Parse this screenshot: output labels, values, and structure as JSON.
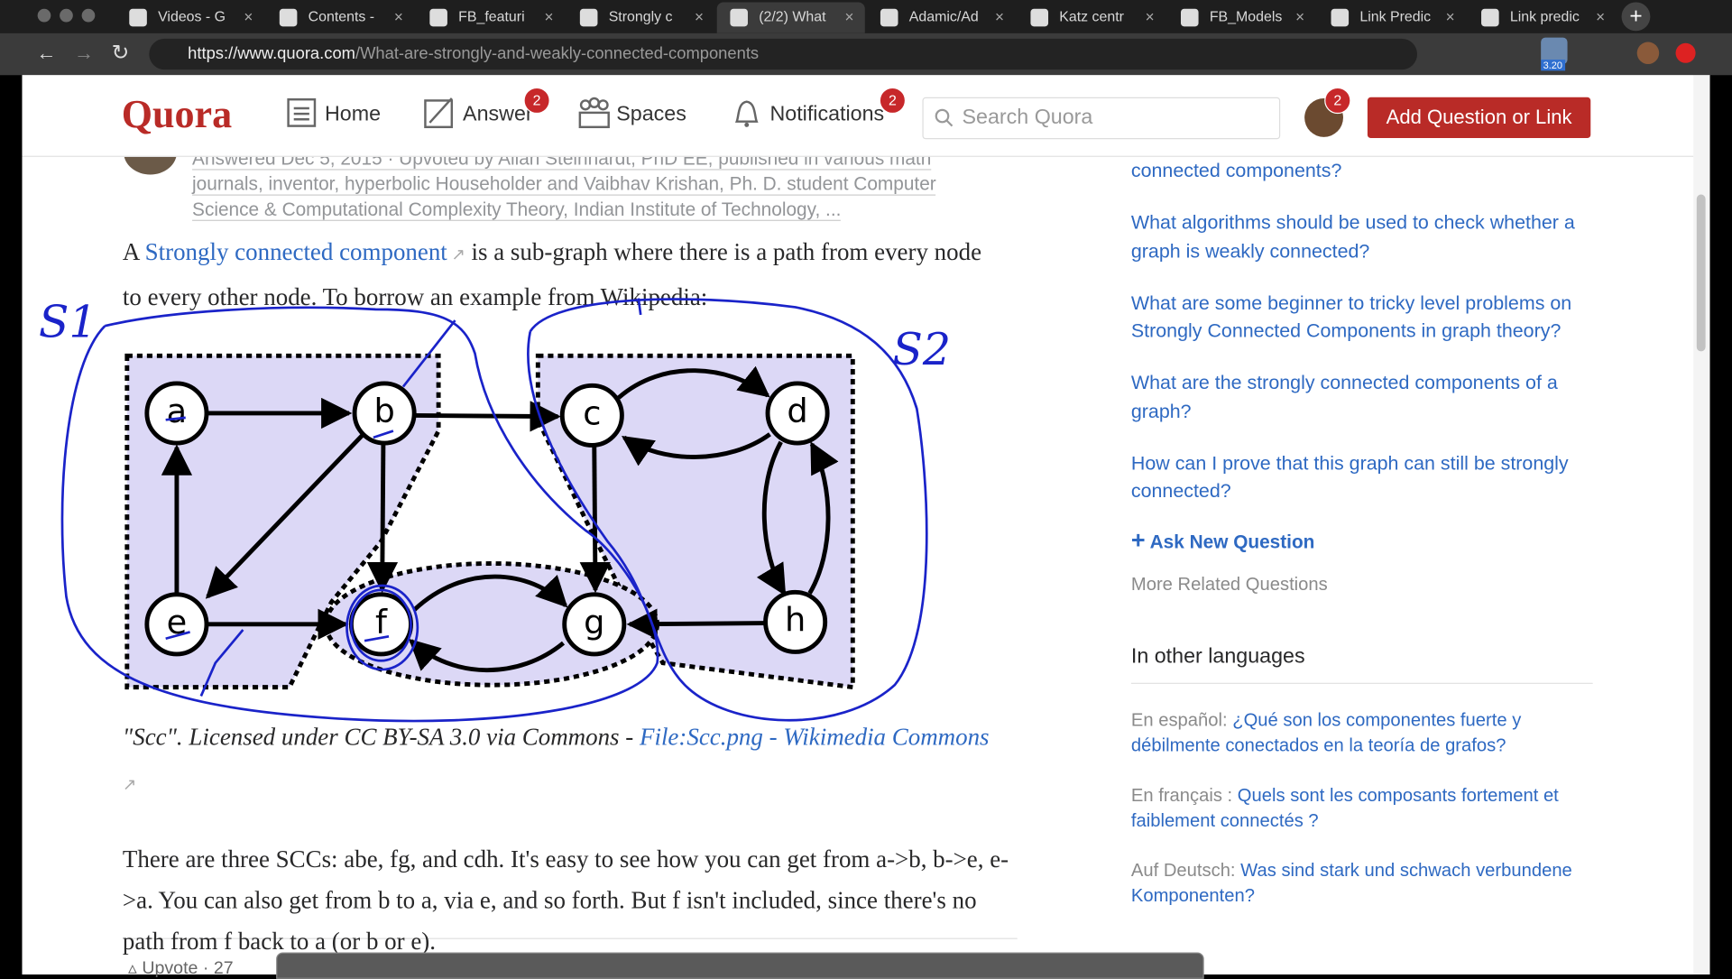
{
  "browser": {
    "tabs": [
      "Videos - G",
      "Contents -",
      "FB_featuri",
      "Strongly c",
      "(2/2) What",
      "Adamic/Ad",
      "Katz centr",
      "FB_Models",
      "Link Predic",
      "Link predic"
    ],
    "url_host": "https://www.quora.com",
    "url_path": "/What-are-strongly-and-weakly-connected-components",
    "extension_badge": "3.20"
  },
  "header": {
    "logo": "Quora",
    "nav": [
      {
        "label": "Home"
      },
      {
        "label": "Answer",
        "badge": 2
      },
      {
        "label": "Spaces"
      },
      {
        "label": "Notifications",
        "badge": 2
      }
    ],
    "search_placeholder": "Search Quora",
    "profile_badge": 2,
    "add_button": "Add Question or Link"
  },
  "answer": {
    "meta_lines": [
      "Answered Dec 5, 2015 · Upvoted by Allan Steinhardt, PhD EE, published in various math",
      "journals, inventor, hyperbolic Householder and Vaibhav Krishan, Ph. D. student Computer",
      "Science & Computational Complexity Theory, Indian Institute of Technology, ..."
    ],
    "intro_prefix": "A ",
    "intro_link": "Strongly connected component",
    "intro_suffix": " is a sub-graph where there is a path from every node to every other node. To borrow an example from Wikipedia:",
    "graph": {
      "nodes": [
        "a",
        "b",
        "c",
        "d",
        "e",
        "f",
        "g",
        "h"
      ],
      "annotations": [
        "S1",
        "S2"
      ]
    },
    "caption_text": "\"Scc\". Licensed under CC BY-SA 3.0 via Commons - ",
    "caption_link": "File:Scc.png - Wikimedia Commons",
    "body": "There are three SCCs: abe, fg, and cdh. It's easy to see how you can get from a->b, b->e, e->a. You can also get from b to a, via e, and so forth. But f isn't included, since there's no path from f back to a (or b or e).",
    "upvote_label": "Upvote",
    "upvote_count": 27
  },
  "sidebar": {
    "related": [
      "connected components?",
      "What algorithms should be used to check whether a graph is weakly connected?",
      "What are some beginner to tricky level problems on Strongly Connected Components in graph theory?",
      "What are the strongly connected components of a graph?",
      "How can I prove that this graph can still be strongly connected?"
    ],
    "ask_new": "Ask New Question",
    "more_related": "More Related Questions",
    "languages_title": "In other languages",
    "languages": [
      {
        "label": "En español:",
        "link": "¿Qué son los componentes fuerte y débilmente conectados en la teoría de grafos?"
      },
      {
        "label": "En français :",
        "link": "Quels sont les composants fortement et faiblement connectés ?"
      },
      {
        "label": "Auf Deutsch:",
        "link": "Was sind stark und schwach verbundene Komponenten?"
      }
    ]
  }
}
